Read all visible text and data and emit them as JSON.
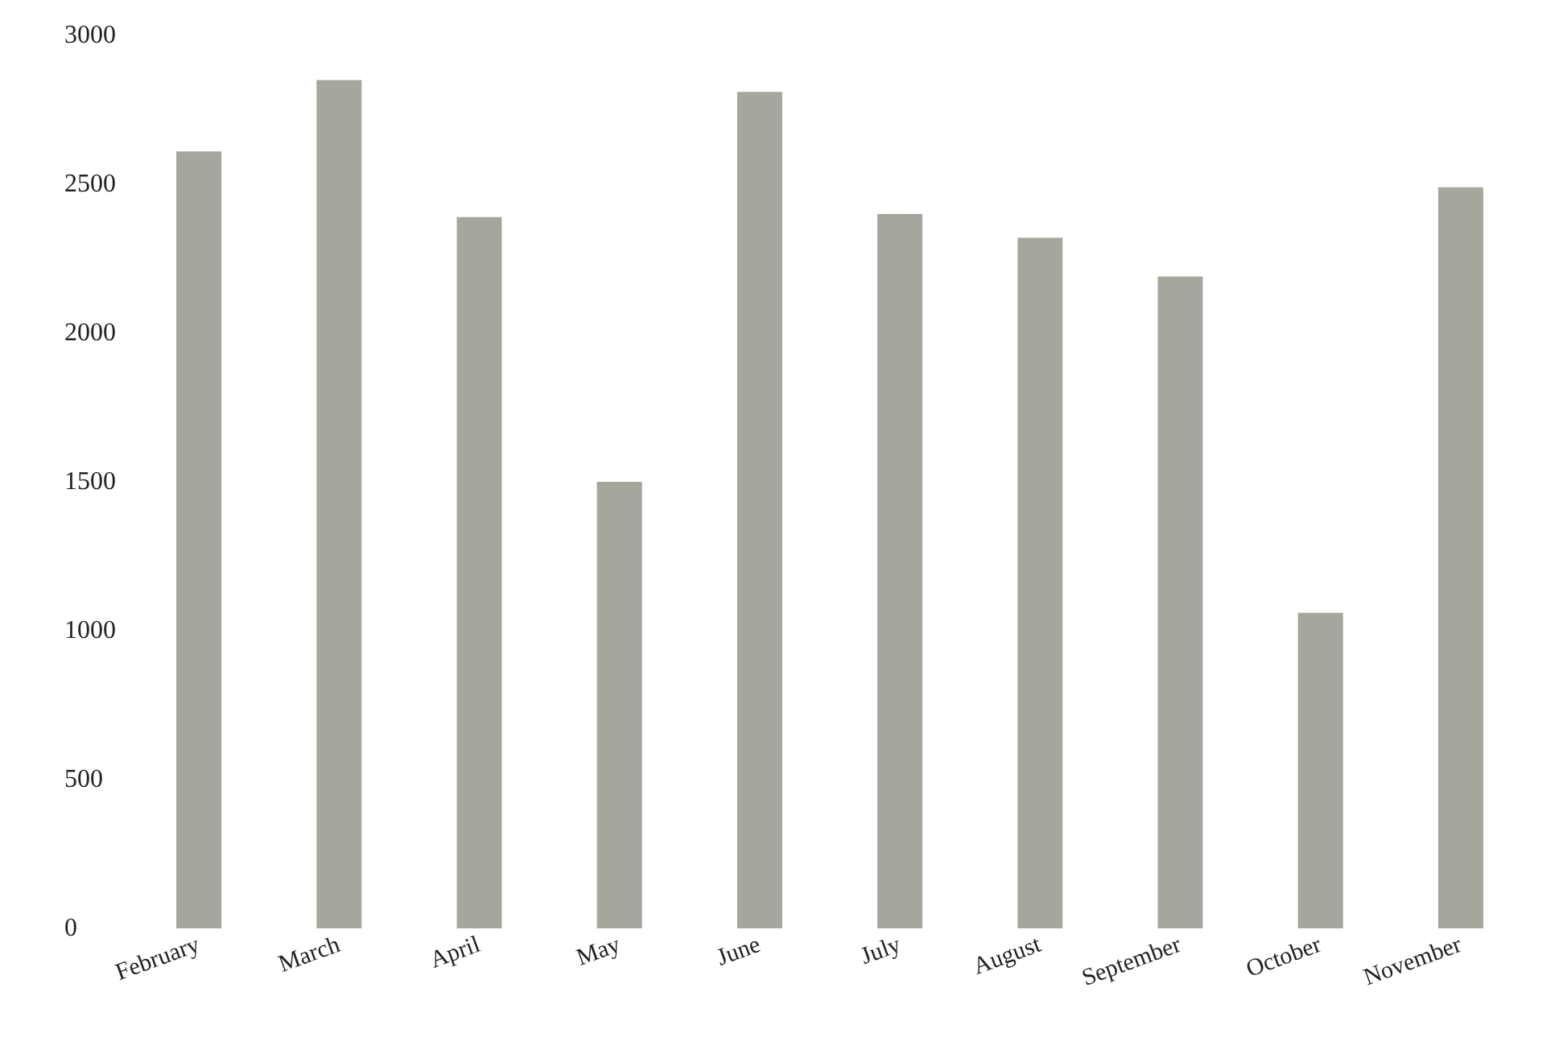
{
  "chart_data": {
    "type": "bar",
    "categories": [
      "February",
      "March",
      "April",
      "May",
      "June",
      "July",
      "August",
      "September",
      "October",
      "November"
    ],
    "values": [
      2610,
      2850,
      2390,
      1500,
      2810,
      2400,
      2320,
      2190,
      1060,
      2490
    ],
    "color": "#a7a69d",
    "ylim": [
      0,
      3000
    ],
    "yticks": [
      0,
      500,
      1000,
      1500,
      2000,
      2500,
      3000
    ],
    "grid": false
  }
}
